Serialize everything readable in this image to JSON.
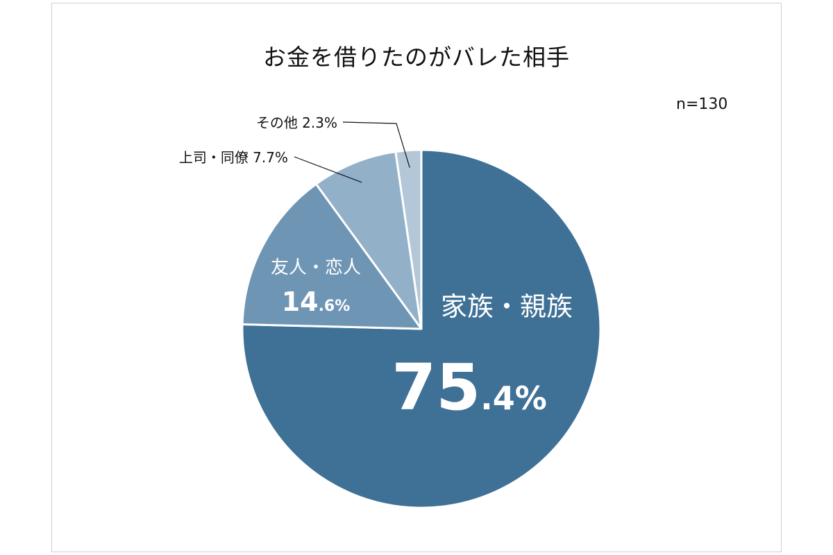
{
  "chart_data": {
    "type": "pie",
    "title": "お金を借りたのがバレた相手",
    "sample_size": "n=130",
    "start_angle": "top",
    "direction": "clockwise",
    "slices": [
      {
        "name": "家族・親族",
        "value": 75.4,
        "big": "75",
        "small": ".4%",
        "color": "#3f7096"
      },
      {
        "name": "友人・恋人",
        "value": 14.6,
        "big": "14",
        "small": ".6%",
        "color": "#6f95b5"
      },
      {
        "name": "上司・同僚",
        "value": 7.7,
        "label": "上司・同僚 7.7%",
        "color": "#93b0c9"
      },
      {
        "name": "その他",
        "value": 2.3,
        "label": "その他 2.3%",
        "color": "#b3c7d8"
      }
    ]
  }
}
